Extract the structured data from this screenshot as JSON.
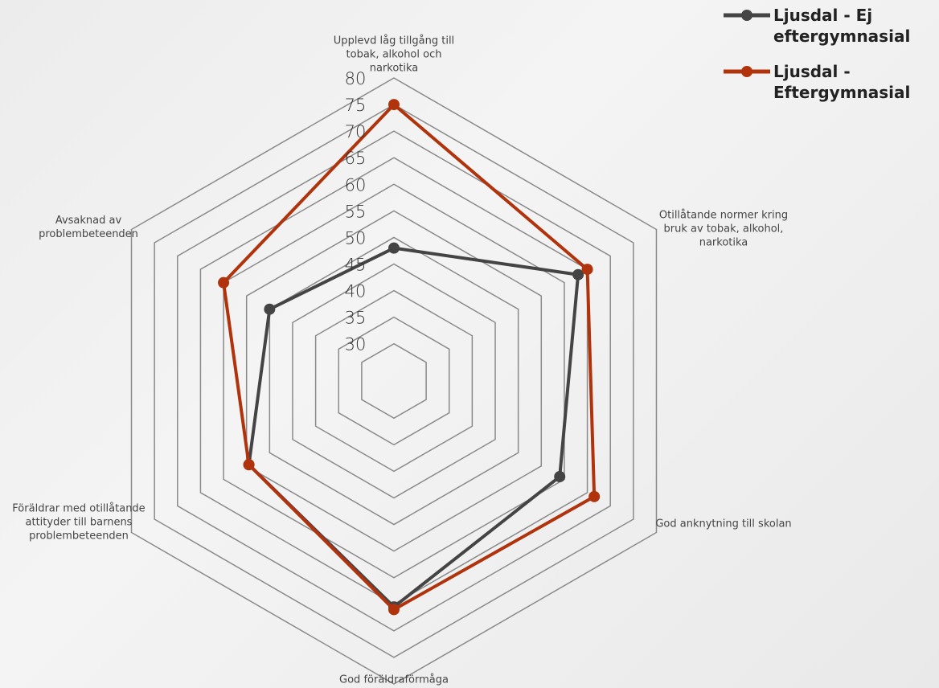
{
  "chart_data": {
    "type": "radar",
    "categories": [
      "Upplevd låg tillgång till tobak, alkohol och narkotika",
      "Otillåtande normer kring bruk av tobak, alkohol, narkotika",
      "God anknytning till skolan",
      "God föräldraförmåga",
      "Föräldrar med otillåtande attityder till barnens problembeteenden",
      "Avsaknad av problembeteenden"
    ],
    "series": [
      {
        "name": "Ljusdal - Ej eftergymnasial",
        "color": "#444444",
        "values": [
          48,
          63,
          59,
          65.5,
          54.5,
          50
        ]
      },
      {
        "name": "Ljusdal - Eftergymnasial",
        "color": "#b0330c",
        "values": [
          75,
          65,
          66.5,
          66,
          54.5,
          60
        ]
      }
    ],
    "ylim": [
      23,
      80
    ],
    "yticks": [
      30,
      35,
      40,
      45,
      50,
      55,
      60,
      65,
      70,
      75,
      80
    ],
    "grid": true,
    "legend": "top-right"
  }
}
